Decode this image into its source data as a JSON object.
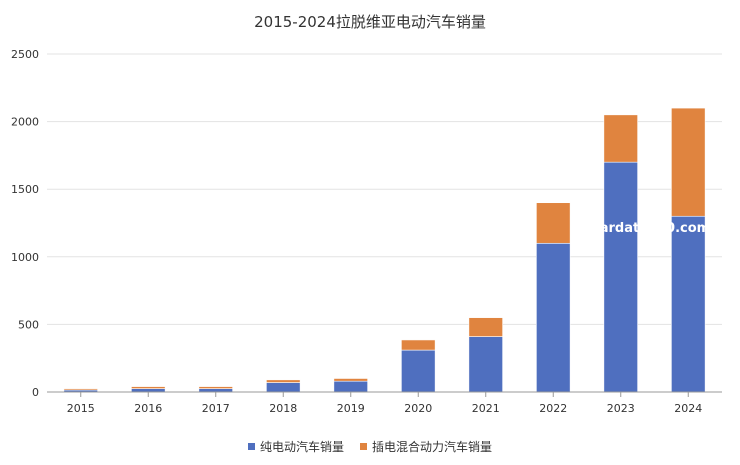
{
  "chart_data": {
    "type": "bar",
    "stacked": true,
    "title": "2015-2024拉脱维亚电动汽车销量",
    "categories": [
      "2015",
      "2016",
      "2017",
      "2018",
      "2019",
      "2020",
      "2021",
      "2022",
      "2023",
      "2024"
    ],
    "series": [
      {
        "name": "纯电动汽车销量",
        "color": "#4f6fbf",
        "values": [
          15,
          25,
          25,
          70,
          80,
          310,
          410,
          1100,
          1700,
          1300
        ]
      },
      {
        "name": "插电混合动力汽车销量",
        "color": "#e0843f",
        "values": [
          10,
          15,
          15,
          20,
          20,
          75,
          140,
          300,
          350,
          800
        ]
      }
    ],
    "ylim": [
      0,
      2500
    ],
    "yticks": [
      0,
      500,
      1000,
      1500,
      2000,
      2500
    ],
    "grid": true,
    "legend": "bottom",
    "watermark": "stardata360.com"
  }
}
